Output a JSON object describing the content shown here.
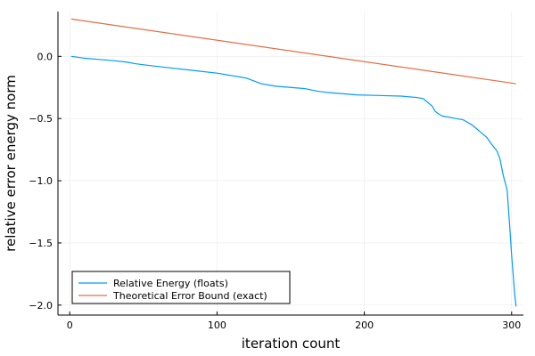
{
  "chart_data": {
    "type": "line",
    "title": "",
    "xlabel": "iteration count",
    "ylabel": "relative error energy norm",
    "xlim": [
      -8,
      308
    ],
    "ylim": [
      -2.08,
      0.36
    ],
    "xticks": [
      0,
      100,
      200,
      300
    ],
    "xtick_labels": [
      "0",
      "100",
      "200",
      "300"
    ],
    "yticks": [
      0.0,
      -0.5,
      -1.0,
      -1.5,
      -2.0
    ],
    "ytick_labels": [
      "0.0",
      "-0.5",
      "-1.0",
      "-1.5",
      "-2.0"
    ],
    "grid": true,
    "legend_position": "bottom-left",
    "series": [
      {
        "name": "Relative Energy (floats)",
        "color": "#009AFA",
        "x": [
          1,
          10,
          20,
          30,
          38,
          45,
          55,
          70,
          85,
          100,
          110,
          120,
          130,
          140,
          150,
          160,
          168,
          175,
          185,
          195,
          210,
          225,
          235,
          240,
          243,
          246,
          248,
          250,
          253,
          258,
          262,
          267,
          270,
          273,
          276,
          280,
          283,
          286,
          288,
          290,
          292,
          293,
          294,
          295,
          296,
          297,
          298,
          299,
          300,
          301,
          302,
          303
        ],
        "y": [
          0.0,
          -0.015,
          -0.025,
          -0.035,
          -0.045,
          -0.06,
          -0.075,
          -0.095,
          -0.115,
          -0.135,
          -0.155,
          -0.175,
          -0.22,
          -0.24,
          -0.25,
          -0.26,
          -0.28,
          -0.29,
          -0.3,
          -0.31,
          -0.315,
          -0.32,
          -0.33,
          -0.34,
          -0.37,
          -0.4,
          -0.44,
          -0.46,
          -0.48,
          -0.49,
          -0.5,
          -0.51,
          -0.53,
          -0.55,
          -0.58,
          -0.62,
          -0.65,
          -0.7,
          -0.73,
          -0.76,
          -0.82,
          -0.88,
          -0.94,
          -0.99,
          -1.03,
          -1.08,
          -1.25,
          -1.42,
          -1.6,
          -1.75,
          -1.9,
          -2.01
        ]
      },
      {
        "name": "Theoretical Error Bound (exact)",
        "color": "#E26F46",
        "x": [
          1,
          303
        ],
        "y": [
          0.3,
          -0.22
        ]
      }
    ]
  }
}
